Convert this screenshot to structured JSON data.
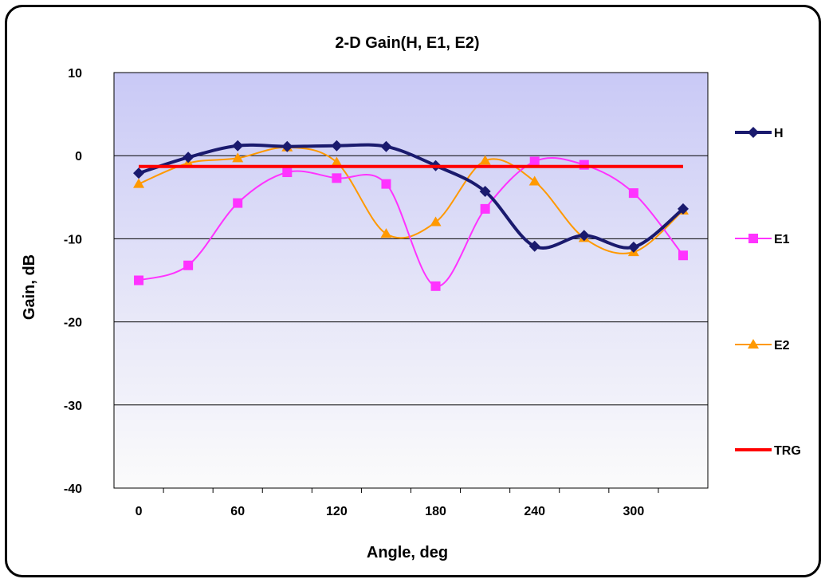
{
  "chart_data": {
    "type": "line",
    "title": "2-D Gain(H, E1, E2)",
    "xlabel": "Angle, deg",
    "ylabel": "Gain, dB",
    "xlim": [
      -15,
      345
    ],
    "ylim": [
      -40,
      10
    ],
    "x_ticks": [
      0,
      60,
      120,
      180,
      240,
      300
    ],
    "y_ticks": [
      10,
      0,
      -10,
      -20,
      -30,
      -40
    ],
    "x_minor_ticks": [
      15,
      45,
      75,
      105,
      135,
      165,
      195,
      225,
      255,
      285,
      315
    ],
    "grid": "horizontal",
    "legend_position": "right",
    "background": "vertical gradient, light blue at top to white at bottom",
    "x": [
      0,
      30,
      60,
      90,
      120,
      150,
      180,
      210,
      240,
      270,
      300,
      330
    ],
    "series": [
      {
        "name": "H",
        "color": "#1a1a6e",
        "marker": "diamond",
        "smooth": true,
        "values": [
          -2.1,
          -0.2,
          1.2,
          1.1,
          1.2,
          1.1,
          -1.2,
          -4.3,
          -10.9,
          -9.6,
          -11.0,
          -6.4
        ]
      },
      {
        "name": "E1",
        "color": "#ff33ff",
        "marker": "square",
        "smooth": true,
        "values": [
          -15.0,
          -13.2,
          -5.7,
          -2.0,
          -2.7,
          -3.4,
          -15.7,
          -6.4,
          -0.7,
          -1.1,
          -4.5,
          -12.0
        ]
      },
      {
        "name": "E2",
        "color": "#ff9900",
        "marker": "triangle",
        "smooth": true,
        "values": [
          -3.4,
          -0.9,
          -0.3,
          1.0,
          -0.8,
          -9.4,
          -8.0,
          -0.6,
          -3.1,
          -9.9,
          -11.6,
          -6.6
        ]
      },
      {
        "name": "TRG",
        "color": "#ff0000",
        "marker": "none",
        "smooth": false,
        "values": [
          -1.3,
          -1.3,
          -1.3,
          -1.3,
          -1.3,
          -1.3,
          -1.3,
          -1.3,
          -1.3,
          -1.3,
          -1.3,
          -1.3
        ]
      }
    ]
  }
}
